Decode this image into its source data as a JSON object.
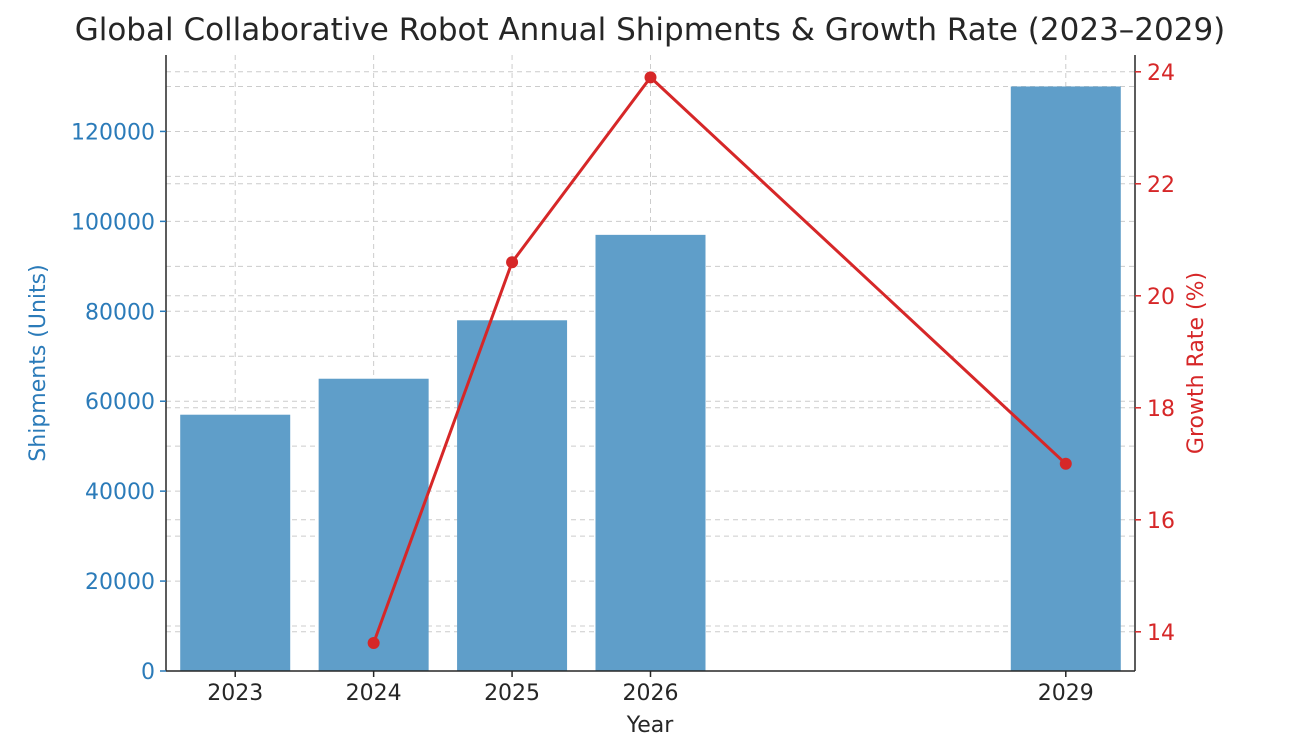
{
  "chart_data": {
    "type": "bar",
    "title": "Global Collaborative Robot Annual Shipments & Growth Rate (2023–2029)",
    "xlabel": "Year",
    "ylabel": "Shipments (Units)",
    "ylabel_right": "Growth Rate (%)",
    "x": [
      2023,
      2024,
      2025,
      2026,
      2029
    ],
    "x_tick_labels": [
      "2023",
      "2024",
      "2025",
      "2026",
      "2029"
    ],
    "xlim": [
      2022.5,
      2029.5
    ],
    "grid": true,
    "series": [
      {
        "type": "bar",
        "axis": "left",
        "values": [
          57000,
          65000,
          78000,
          97000,
          130000
        ],
        "color": "#5f9ec9"
      },
      {
        "type": "line",
        "axis": "right",
        "x": [
          2024,
          2025,
          2026,
          2029
        ],
        "values": [
          13.8,
          20.6,
          23.9,
          17.0
        ],
        "color": "#d62728"
      }
    ],
    "ylim": [
      0,
      137000
    ],
    "y_ticks": [
      0,
      20000,
      40000,
      60000,
      80000,
      100000,
      120000
    ],
    "y_tick_labels": [
      "0",
      "20000",
      "40000",
      "60000",
      "80000",
      "100000",
      "120000"
    ],
    "y_grid_minor": [
      10000,
      30000,
      50000,
      70000,
      90000,
      110000,
      130000
    ],
    "ylim_right": [
      13.3,
      24.3
    ],
    "y_ticks_right": [
      14,
      16,
      18,
      20,
      22,
      24
    ],
    "y_tick_labels_right": [
      "14",
      "16",
      "18",
      "20",
      "22",
      "24"
    ],
    "colors": {
      "left_axis": "#2b7bb9",
      "right_axis": "#d62728",
      "axis_line": "#262626",
      "grid": "#cccccc",
      "text": "#262626"
    }
  }
}
